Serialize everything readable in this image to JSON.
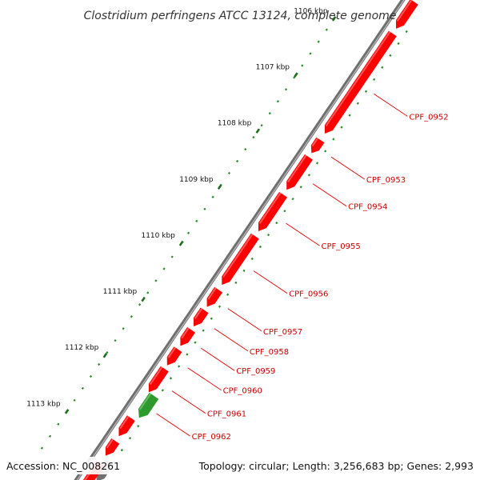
{
  "title": "Clostridium perfringens ATCC 13124, complete genome",
  "accession": "Accession: NC_008261",
  "topology": "Topology: circular; Length: 3,256,683 bp; Genes: 2,993",
  "colors": {
    "backbone": "#808080",
    "forward_gene": "#ff0000",
    "forward_gene_highlight": "#ff8080",
    "reverse_gene": "#2e9a2e",
    "other_gene": "#707070",
    "dots": "#2a8a2a",
    "label": "#cc0000",
    "leader": "#e00000"
  },
  "scale_labels": [
    {
      "text": "1106 kbp",
      "t": 0.1
    },
    {
      "text": "1107 kbp",
      "t": 0.215
    },
    {
      "text": "1108 kbp",
      "t": 0.33
    },
    {
      "text": "1109 kbp",
      "t": 0.445
    },
    {
      "text": "1110 kbp",
      "t": 0.56
    },
    {
      "text": "1111 kbp",
      "t": 0.675
    },
    {
      "text": "1112 kbp",
      "t": 0.79
    },
    {
      "text": "1113 kbp",
      "t": 0.905
    }
  ],
  "genes": [
    {
      "label": "",
      "strand": "forward",
      "t0": 0.0,
      "t1": 0.055
    },
    {
      "label": "CPF_0952",
      "strand": "forward",
      "t0": 0.065,
      "t1": 0.27
    },
    {
      "label": "CPF_0953",
      "strand": "forward",
      "t0": 0.283,
      "t1": 0.31
    },
    {
      "label": "CPF_0954",
      "strand": "forward",
      "t0": 0.318,
      "t1": 0.385
    },
    {
      "label": "CPF_0955",
      "strand": "forward",
      "t0": 0.395,
      "t1": 0.47
    },
    {
      "label": "CPF_0956",
      "strand": "forward",
      "t0": 0.48,
      "t1": 0.58
    },
    {
      "label": "CPF_0957",
      "strand": "forward",
      "t0": 0.59,
      "t1": 0.625
    },
    {
      "label": "CPF_0958",
      "strand": "forward",
      "t0": 0.632,
      "t1": 0.665
    },
    {
      "label": "CPF_0959",
      "strand": "forward",
      "t0": 0.672,
      "t1": 0.705
    },
    {
      "label": "CPF_0960",
      "strand": "forward",
      "t0": 0.712,
      "t1": 0.745
    },
    {
      "label": "CPF_0961",
      "strand": "forward",
      "t0": 0.752,
      "t1": 0.8
    },
    {
      "label": "CPF_0962",
      "strand": "reverse",
      "t0": 0.8,
      "t1": 0.845
    },
    {
      "label": "",
      "strand": "forward",
      "t0": 0.853,
      "t1": 0.89
    },
    {
      "label": "",
      "strand": "forward",
      "t0": 0.9,
      "t1": 0.93
    },
    {
      "label": "",
      "strand": "other",
      "t0": 0.935,
      "t1": 0.975
    },
    {
      "label": "",
      "strand": "forward",
      "t0": 0.945,
      "t1": 1.0
    }
  ]
}
